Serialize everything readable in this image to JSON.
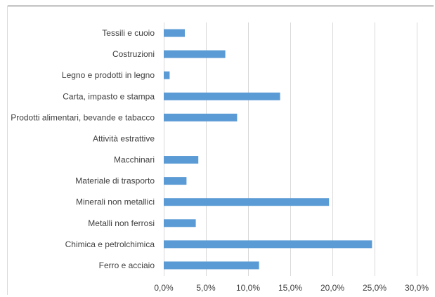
{
  "chart_data": {
    "type": "bar",
    "orientation": "horizontal",
    "title": "",
    "xlabel": "",
    "ylabel": "",
    "categories": [
      "Tessili e cuoio",
      "Costruzioni",
      "Legno e prodotti in legno",
      "Carta, impasto e stampa",
      "Prodotti alimentari, bevande e tabacco",
      "Attività estrattive",
      "Macchinari",
      "Materiale di trasporto",
      "Minerali non metallici",
      "Metalli non ferrosi",
      "Chimica e petrolchimica",
      "Ferro e acciaio"
    ],
    "values": [
      2.5,
      7.3,
      0.7,
      13.8,
      8.7,
      0.0,
      4.1,
      2.7,
      19.6,
      3.8,
      24.7,
      11.3
    ],
    "xlim": [
      0,
      30
    ],
    "xticks": [
      0,
      5,
      10,
      15,
      20,
      25,
      30
    ],
    "xtick_labels": [
      "0,0%",
      "5,0%",
      "10,0%",
      "15,0%",
      "20,0%",
      "25,0%",
      "30,0%"
    ],
    "grid": "vertical",
    "legend": "none",
    "bar_color": "#5b9bd5",
    "grid_color": "#d9d9d9"
  }
}
